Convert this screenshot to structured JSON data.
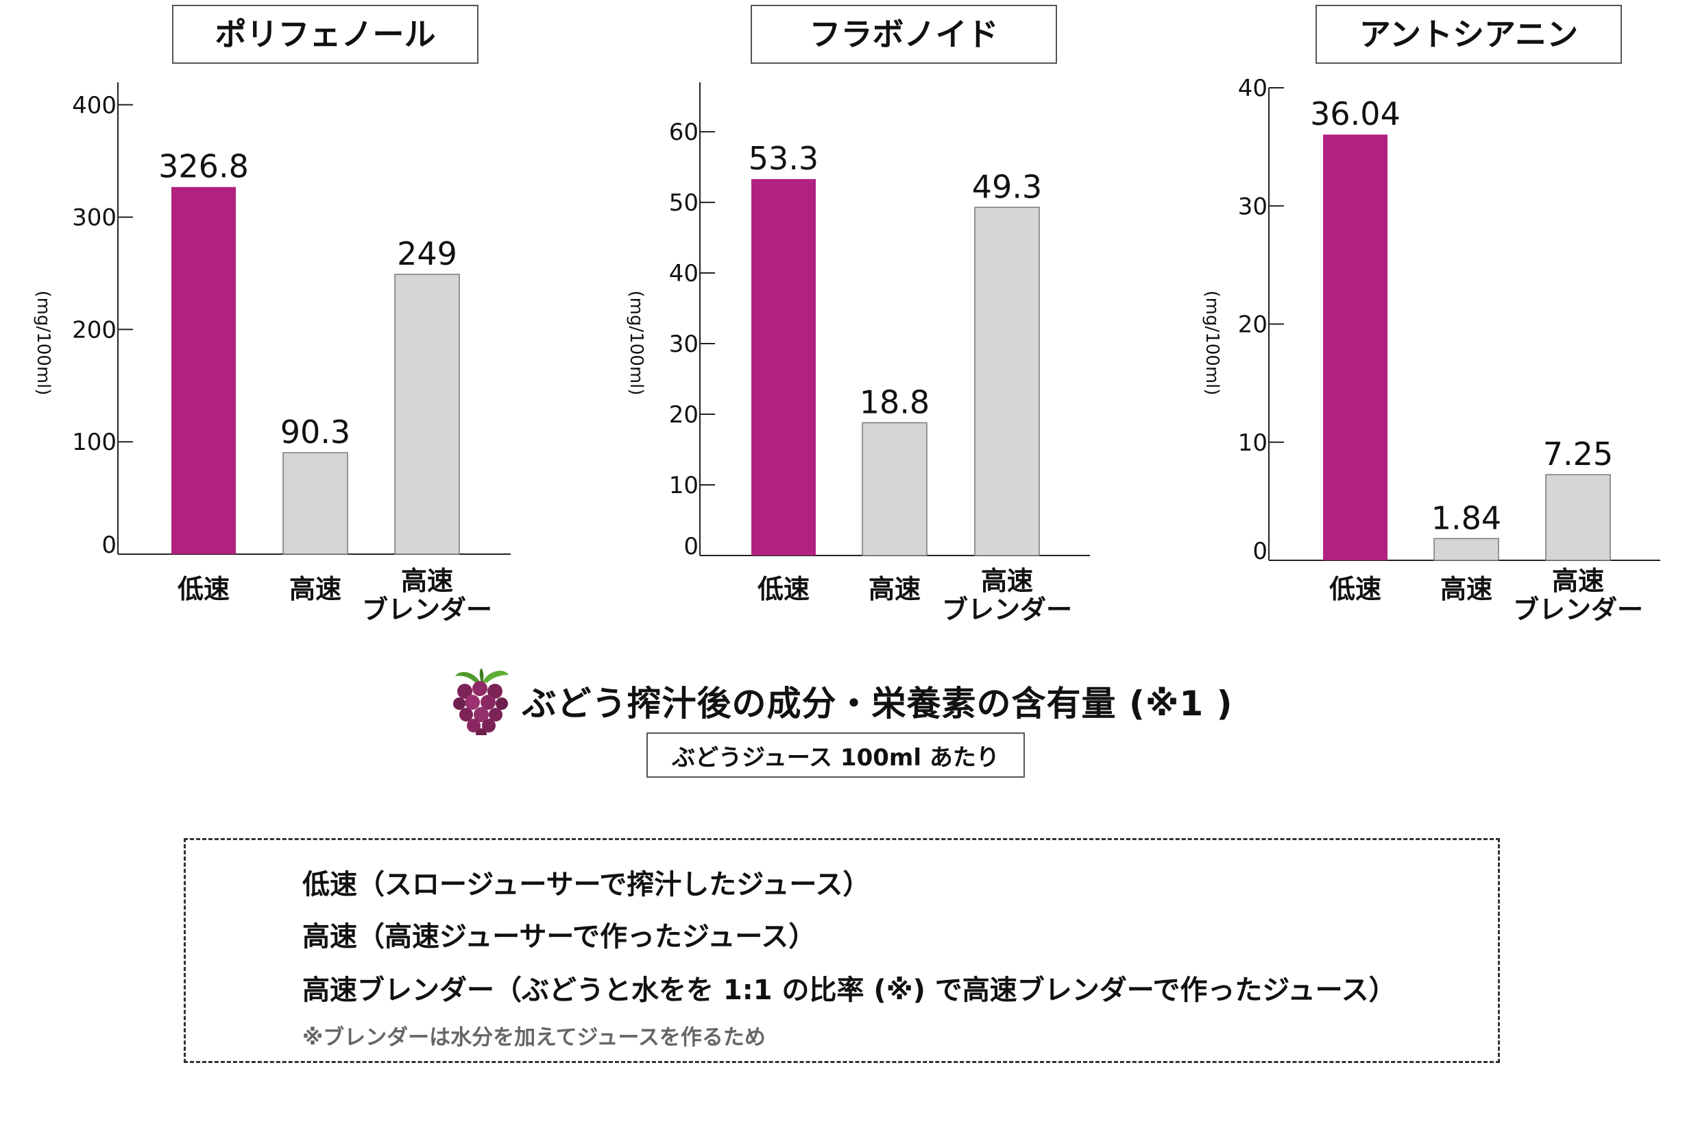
{
  "colors": {
    "highlight": "#b1217f",
    "neutral": "#d6d6d6",
    "neutral_stroke": "#777777",
    "axis": "#222222"
  },
  "chart_data": [
    {
      "type": "bar",
      "title": "ポリフェノール",
      "ylabel": "(mg/100ml)",
      "categories": [
        "低速",
        "高速",
        "高速\nブレンダー"
      ],
      "values": [
        326.8,
        90.3,
        249
      ],
      "value_labels": [
        "326.8",
        "90.3",
        "249"
      ],
      "yticks": [
        0,
        100,
        200,
        300,
        400
      ],
      "ylim": [
        0,
        420
      ],
      "highlight_index": 0,
      "grid": false
    },
    {
      "type": "bar",
      "title": "フラボノイド",
      "ylabel": "(mg/100ml)",
      "categories": [
        "低速",
        "高速",
        "高速\nブレンダー"
      ],
      "values": [
        53.3,
        18.8,
        49.3
      ],
      "value_labels": [
        "53.3",
        "18.8",
        "49.3"
      ],
      "yticks": [
        0,
        10,
        20,
        30,
        40,
        50,
        60
      ],
      "ylim": [
        0,
        67
      ],
      "highlight_index": 0,
      "grid": false
    },
    {
      "type": "bar",
      "title": "アントシアニン",
      "ylabel": "(mg/100ml)",
      "categories": [
        "低速",
        "高速",
        "高速\nブレンダー"
      ],
      "values": [
        36.04,
        1.84,
        7.25
      ],
      "value_labels": [
        "36.04",
        "1.84",
        "7.25"
      ],
      "yticks": [
        0,
        10,
        20,
        30,
        40
      ],
      "ylim": [
        0,
        40
      ],
      "highlight_index": 0,
      "grid": false
    }
  ],
  "caption": {
    "icon": "grape-icon",
    "title": "ぶどう搾汁後の成分・栄養素の含有量 (※1 )",
    "subtitle": "ぶどうジュース 100ml あたり"
  },
  "legend": {
    "lines": [
      "低速（スロージューサーで搾汁したジュース）",
      "高速（高速ジューサーで作ったジュース）",
      "高速ブレンダー（ぶどうと水をを 1:1 の比率 (※) で高速ブレンダーで作ったジュース）"
    ],
    "note": "※ブレンダーは水分を加えてジュースを作るため"
  }
}
